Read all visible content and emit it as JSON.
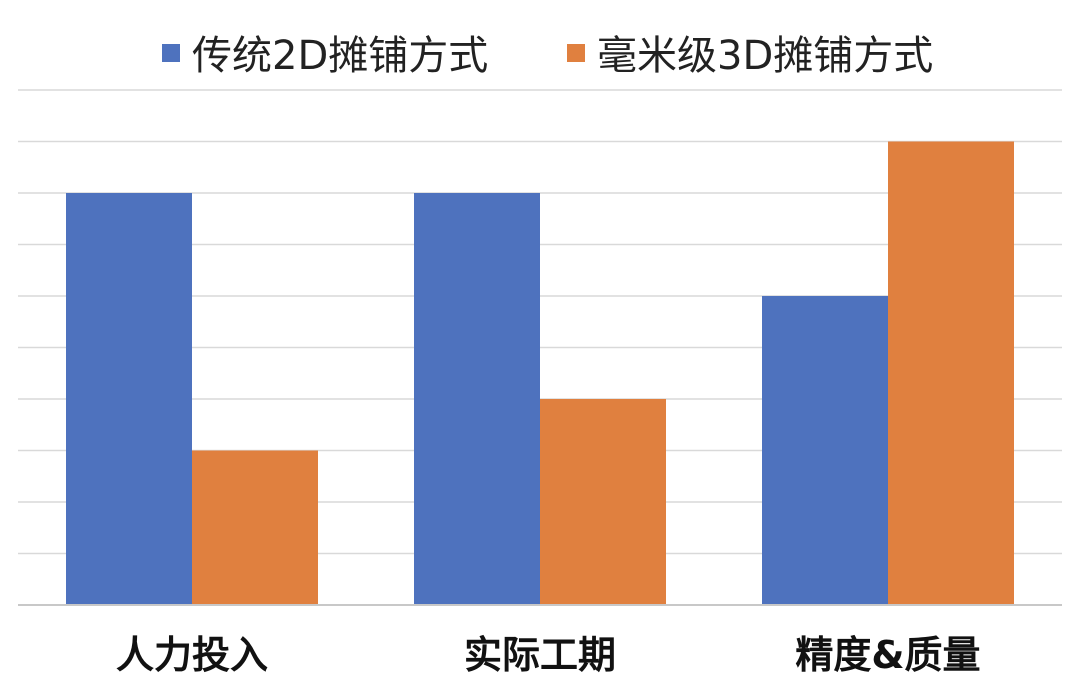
{
  "chart_data": {
    "type": "bar",
    "title": "",
    "xlabel": "",
    "ylabel": "",
    "categories": [
      "人力投入",
      "实际工期",
      "精度&质量"
    ],
    "series": [
      {
        "name": "传统2D摊铺方式",
        "color": "#4E72BE",
        "values": [
          8,
          8,
          6
        ]
      },
      {
        "name": "毫米级3D摊铺方式",
        "color": "#E0803F",
        "values": [
          3,
          4,
          9
        ]
      }
    ],
    "ylim": [
      0,
      10
    ],
    "y_tick_labels_shown": false,
    "grid": true,
    "legend_position": "top-center"
  }
}
